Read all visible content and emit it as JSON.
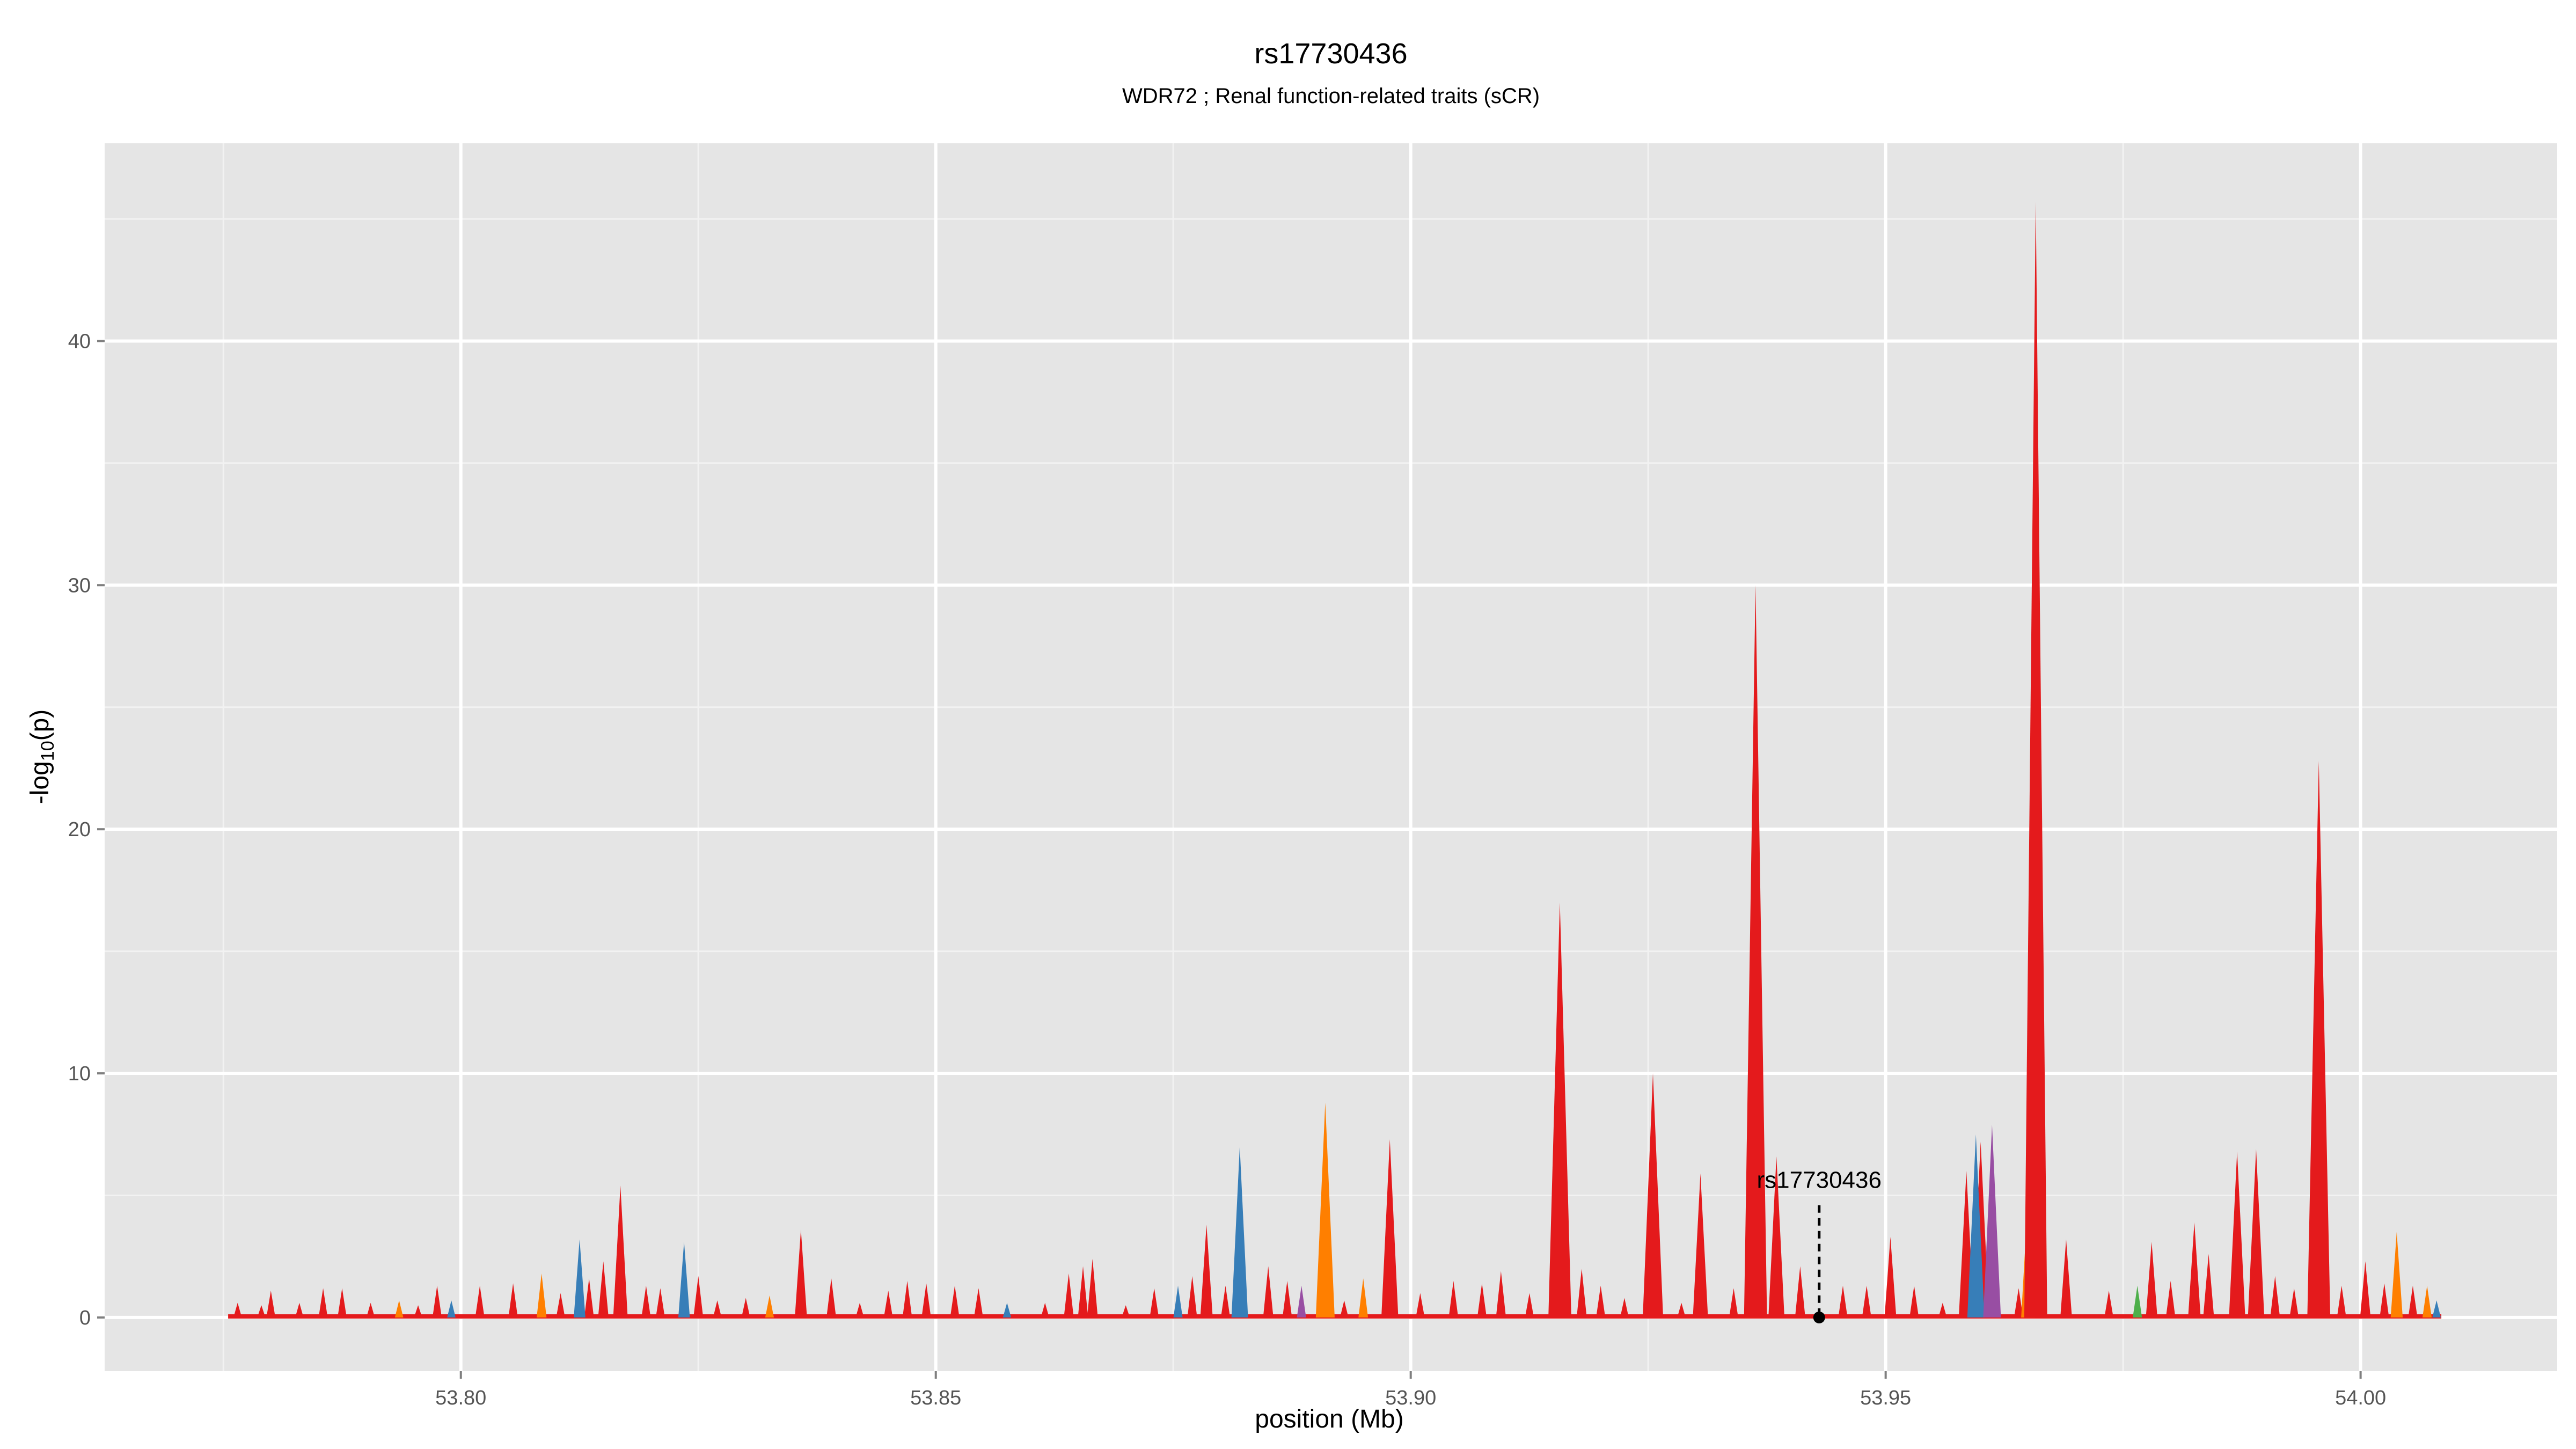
{
  "chart_data": {
    "type": "area",
    "title": "rs17730436",
    "subtitle": "WDR72 ; Renal function-related traits (sCR)",
    "xlabel": "position (Mb)",
    "ylabel_main": "-log",
    "ylabel_sub": "10",
    "ylabel_tail": "(p)",
    "xlim": [
      53.7625,
      54.0207
    ],
    "ylim": [
      -2.2,
      48.1
    ],
    "x_ticks": [
      53.8,
      53.85,
      53.9,
      53.95,
      54.0
    ],
    "x_tick_labels": [
      "53.80",
      "53.85",
      "53.90",
      "53.95",
      "54.00"
    ],
    "y_ticks": [
      0,
      10,
      20,
      30,
      40
    ],
    "y_tick_labels": [
      "0",
      "10",
      "20",
      "30",
      "40"
    ],
    "grid": true,
    "panel_color": "#e5e5e5",
    "series_colors": {
      "red": "#e41a1c",
      "orange": "#ff7f00",
      "blue": "#377eb8",
      "green": "#4daf4a",
      "purple": "#984ea3"
    },
    "x_range_data": [
      53.7755,
      54.0085
    ],
    "peaks": [
      {
        "x": 53.7765,
        "y": 0.6,
        "c": "red"
      },
      {
        "x": 53.779,
        "y": 0.5,
        "c": "red"
      },
      {
        "x": 53.78,
        "y": 1.1,
        "c": "red"
      },
      {
        "x": 53.783,
        "y": 0.6,
        "c": "red"
      },
      {
        "x": 53.7855,
        "y": 1.2,
        "c": "red"
      },
      {
        "x": 53.7875,
        "y": 1.2,
        "c": "red"
      },
      {
        "x": 53.7905,
        "y": 0.6,
        "c": "red"
      },
      {
        "x": 53.7935,
        "y": 0.7,
        "c": "orange"
      },
      {
        "x": 53.7955,
        "y": 0.5,
        "c": "red"
      },
      {
        "x": 53.7975,
        "y": 1.3,
        "c": "red"
      },
      {
        "x": 53.799,
        "y": 0.7,
        "c": "blue"
      },
      {
        "x": 53.802,
        "y": 1.3,
        "c": "red"
      },
      {
        "x": 53.8055,
        "y": 1.4,
        "c": "red"
      },
      {
        "x": 53.8085,
        "y": 1.8,
        "c": "orange"
      },
      {
        "x": 53.8105,
        "y": 1.0,
        "c": "red"
      },
      {
        "x": 53.8125,
        "y": 3.2,
        "c": "blue"
      },
      {
        "x": 53.8135,
        "y": 1.6,
        "c": "red"
      },
      {
        "x": 53.815,
        "y": 2.3,
        "c": "red"
      },
      {
        "x": 53.8168,
        "y": 5.4,
        "c": "red"
      },
      {
        "x": 53.8195,
        "y": 1.3,
        "c": "red"
      },
      {
        "x": 53.821,
        "y": 1.2,
        "c": "red"
      },
      {
        "x": 53.8235,
        "y": 3.1,
        "c": "blue"
      },
      {
        "x": 53.825,
        "y": 1.7,
        "c": "red"
      },
      {
        "x": 53.827,
        "y": 0.7,
        "c": "red"
      },
      {
        "x": 53.83,
        "y": 0.8,
        "c": "red"
      },
      {
        "x": 53.8325,
        "y": 0.9,
        "c": "orange"
      },
      {
        "x": 53.8358,
        "y": 3.6,
        "c": "red"
      },
      {
        "x": 53.839,
        "y": 1.6,
        "c": "red"
      },
      {
        "x": 53.842,
        "y": 0.6,
        "c": "red"
      },
      {
        "x": 53.845,
        "y": 1.1,
        "c": "red"
      },
      {
        "x": 53.847,
        "y": 1.5,
        "c": "red"
      },
      {
        "x": 53.849,
        "y": 1.4,
        "c": "red"
      },
      {
        "x": 53.852,
        "y": 1.3,
        "c": "red"
      },
      {
        "x": 53.8545,
        "y": 1.2,
        "c": "red"
      },
      {
        "x": 53.8575,
        "y": 0.6,
        "c": "blue"
      },
      {
        "x": 53.8615,
        "y": 0.6,
        "c": "red"
      },
      {
        "x": 53.864,
        "y": 1.8,
        "c": "red"
      },
      {
        "x": 53.8655,
        "y": 2.1,
        "c": "red"
      },
      {
        "x": 53.8665,
        "y": 2.4,
        "c": "red"
      },
      {
        "x": 53.87,
        "y": 0.5,
        "c": "red"
      },
      {
        "x": 53.873,
        "y": 1.2,
        "c": "red"
      },
      {
        "x": 53.8755,
        "y": 1.3,
        "c": "blue"
      },
      {
        "x": 53.877,
        "y": 1.7,
        "c": "red"
      },
      {
        "x": 53.8785,
        "y": 3.8,
        "c": "red"
      },
      {
        "x": 53.8805,
        "y": 1.3,
        "c": "red"
      },
      {
        "x": 53.882,
        "y": 7.0,
        "c": "blue"
      },
      {
        "x": 53.885,
        "y": 2.1,
        "c": "red"
      },
      {
        "x": 53.887,
        "y": 1.5,
        "c": "red"
      },
      {
        "x": 53.8885,
        "y": 1.3,
        "c": "purple"
      },
      {
        "x": 53.891,
        "y": 8.8,
        "c": "orange"
      },
      {
        "x": 53.893,
        "y": 0.7,
        "c": "red"
      },
      {
        "x": 53.895,
        "y": 1.6,
        "c": "orange"
      },
      {
        "x": 53.8978,
        "y": 7.3,
        "c": "red"
      },
      {
        "x": 53.901,
        "y": 1.0,
        "c": "red"
      },
      {
        "x": 53.9045,
        "y": 1.5,
        "c": "red"
      },
      {
        "x": 53.9075,
        "y": 1.4,
        "c": "red"
      },
      {
        "x": 53.9095,
        "y": 1.9,
        "c": "red"
      },
      {
        "x": 53.9125,
        "y": 1.0,
        "c": "red"
      },
      {
        "x": 53.9157,
        "y": 17.0,
        "c": "red"
      },
      {
        "x": 53.918,
        "y": 2.0,
        "c": "red"
      },
      {
        "x": 53.92,
        "y": 1.3,
        "c": "red"
      },
      {
        "x": 53.9225,
        "y": 0.8,
        "c": "red"
      },
      {
        "x": 53.9255,
        "y": 10.0,
        "c": "red"
      },
      {
        "x": 53.9285,
        "y": 0.6,
        "c": "red"
      },
      {
        "x": 53.9305,
        "y": 5.9,
        "c": "red"
      },
      {
        "x": 53.934,
        "y": 1.2,
        "c": "red"
      },
      {
        "x": 53.936,
        "y": 5.8,
        "c": "orange"
      },
      {
        "x": 53.9363,
        "y": 30.0,
        "c": "red"
      },
      {
        "x": 53.9385,
        "y": 6.6,
        "c": "red"
      },
      {
        "x": 53.941,
        "y": 2.1,
        "c": "red"
      },
      {
        "x": 53.9455,
        "y": 1.3,
        "c": "red"
      },
      {
        "x": 53.948,
        "y": 1.3,
        "c": "red"
      },
      {
        "x": 53.9505,
        "y": 3.3,
        "c": "red"
      },
      {
        "x": 53.953,
        "y": 1.3,
        "c": "red"
      },
      {
        "x": 53.956,
        "y": 0.6,
        "c": "red"
      },
      {
        "x": 53.9585,
        "y": 6.0,
        "c": "red"
      },
      {
        "x": 53.9595,
        "y": 7.5,
        "c": "blue"
      },
      {
        "x": 53.96,
        "y": 7.2,
        "c": "red"
      },
      {
        "x": 53.9612,
        "y": 7.9,
        "c": "purple"
      },
      {
        "x": 53.964,
        "y": 1.2,
        "c": "red"
      },
      {
        "x": 53.965,
        "y": 5.0,
        "c": "orange"
      },
      {
        "x": 53.9658,
        "y": 45.7,
        "c": "red"
      },
      {
        "x": 53.969,
        "y": 3.2,
        "c": "red"
      },
      {
        "x": 53.9735,
        "y": 1.1,
        "c": "red"
      },
      {
        "x": 53.9765,
        "y": 1.3,
        "c": "green"
      },
      {
        "x": 53.978,
        "y": 3.1,
        "c": "red"
      },
      {
        "x": 53.98,
        "y": 1.5,
        "c": "red"
      },
      {
        "x": 53.9825,
        "y": 3.9,
        "c": "red"
      },
      {
        "x": 53.984,
        "y": 2.6,
        "c": "red"
      },
      {
        "x": 53.987,
        "y": 6.8,
        "c": "red"
      },
      {
        "x": 53.989,
        "y": 6.9,
        "c": "red"
      },
      {
        "x": 53.991,
        "y": 1.7,
        "c": "red"
      },
      {
        "x": 53.993,
        "y": 1.2,
        "c": "red"
      },
      {
        "x": 53.9956,
        "y": 22.8,
        "c": "red"
      },
      {
        "x": 53.998,
        "y": 1.3,
        "c": "red"
      },
      {
        "x": 54.0005,
        "y": 2.3,
        "c": "red"
      },
      {
        "x": 54.0025,
        "y": 1.4,
        "c": "red"
      },
      {
        "x": 54.0038,
        "y": 3.5,
        "c": "orange"
      },
      {
        "x": 54.0055,
        "y": 1.3,
        "c": "red"
      },
      {
        "x": 54.007,
        "y": 1.3,
        "c": "orange"
      },
      {
        "x": 54.008,
        "y": 0.7,
        "c": "blue"
      }
    ],
    "annotation": {
      "label": "rs17730436",
      "x": 53.943,
      "y": 0,
      "line_top": 4.6
    }
  }
}
